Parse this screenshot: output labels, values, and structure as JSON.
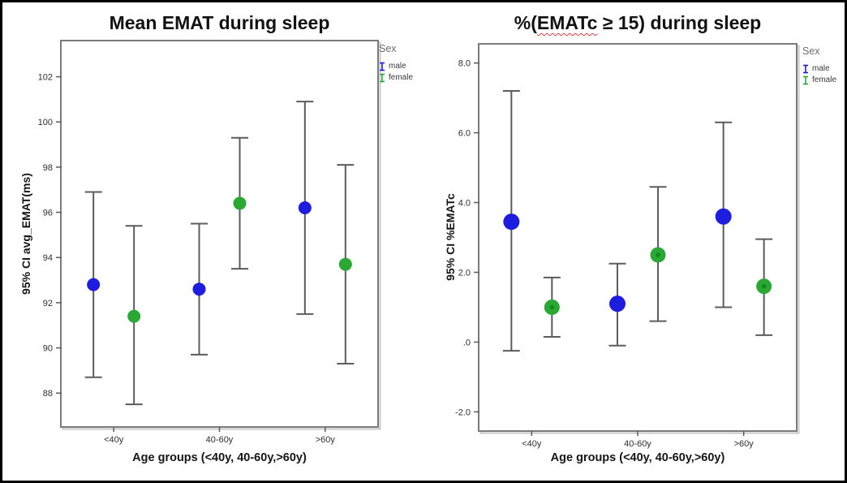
{
  "figure": {
    "background": "#ffffff",
    "border_color": "#000000",
    "frame_color": "#7b7b7b",
    "error_bar_color": "#5c5c5c",
    "male_color": "#1d1de0",
    "female_color": "#29a834"
  },
  "chart_data": [
    {
      "type": "errorbar",
      "title": "Mean EMAT during sleep",
      "title_parts": {
        "pre": "Mean EMAT during sleep",
        "wavy": "",
        "post": ""
      },
      "xlabel": "Age groups (<40y, 40-60y,>60y)",
      "ylabel": "95% CI avg_EMAT(ms)",
      "categories": [
        "<40y",
        "40-60y",
        ">60y"
      ],
      "yticks": [
        88,
        90,
        92,
        94,
        96,
        98,
        100,
        102
      ],
      "ytick_labels": [
        "88",
        "90",
        "92",
        "94",
        "96",
        "98",
        "100",
        "102"
      ],
      "ylim": [
        86.5,
        103.6
      ],
      "grid": false,
      "legend": {
        "title": "Sex",
        "position": "top-right",
        "items": [
          {
            "label": "male",
            "color": "#1d1de0"
          },
          {
            "label": "female",
            "color": "#29a834"
          }
        ]
      },
      "series": [
        {
          "name": "male",
          "color": "#1d1de0",
          "points": [
            {
              "category": "<40y",
              "mean": 92.8,
              "ci_low": 88.7,
              "ci_high": 96.9
            },
            {
              "category": "40-60y",
              "mean": 92.6,
              "ci_low": 89.7,
              "ci_high": 95.5
            },
            {
              "category": ">60y",
              "mean": 96.2,
              "ci_low": 91.5,
              "ci_high": 100.9
            }
          ]
        },
        {
          "name": "female",
          "color": "#29a834",
          "points": [
            {
              "category": "<40y",
              "mean": 91.4,
              "ci_low": 87.5,
              "ci_high": 95.4
            },
            {
              "category": "40-60y",
              "mean": 96.4,
              "ci_low": 93.5,
              "ci_high": 99.3
            },
            {
              "category": ">60y",
              "mean": 93.7,
              "ci_low": 89.3,
              "ci_high": 98.1
            }
          ]
        }
      ]
    },
    {
      "type": "errorbar",
      "title": "%(EMATc ≥ 15) during sleep",
      "title_parts": {
        "pre": "%(",
        "wavy": "EMATc",
        "post": " ≥ 15) during sleep"
      },
      "xlabel": "Age groups (<40y, 40-60y,>60y)",
      "ylabel": "95% CI %EMATc",
      "categories": [
        "<40y",
        "40-60y",
        ">60y"
      ],
      "yticks": [
        -2,
        0,
        2,
        4,
        6,
        8
      ],
      "ytick_labels": [
        "-2.0",
        ".0",
        "2.0",
        "4.0",
        "6.0",
        "8.0"
      ],
      "ylim": [
        -2.55,
        8.55
      ],
      "grid": false,
      "legend": {
        "title": "Sex",
        "position": "top-right",
        "items": [
          {
            "label": "male",
            "color": "#1d1de0"
          },
          {
            "label": "female",
            "color": "#29a834"
          }
        ]
      },
      "series": [
        {
          "name": "male",
          "color": "#1d1de0",
          "points": [
            {
              "category": "<40y",
              "mean": 3.45,
              "ci_low": -0.25,
              "ci_high": 7.2
            },
            {
              "category": "40-60y",
              "mean": 1.1,
              "ci_low": -0.1,
              "ci_high": 2.25
            },
            {
              "category": ">60y",
              "mean": 3.6,
              "ci_low": 1.0,
              "ci_high": 6.3
            }
          ]
        },
        {
          "name": "female",
          "color": "#29a834",
          "inner_dot_color": "#118a20",
          "points": [
            {
              "category": "<40y",
              "mean": 1.0,
              "ci_low": 0.15,
              "ci_high": 1.85
            },
            {
              "category": "40-60y",
              "mean": 2.5,
              "ci_low": 0.6,
              "ci_high": 4.45
            },
            {
              "category": ">60y",
              "mean": 1.6,
              "ci_low": 0.2,
              "ci_high": 2.95
            }
          ]
        }
      ]
    }
  ]
}
